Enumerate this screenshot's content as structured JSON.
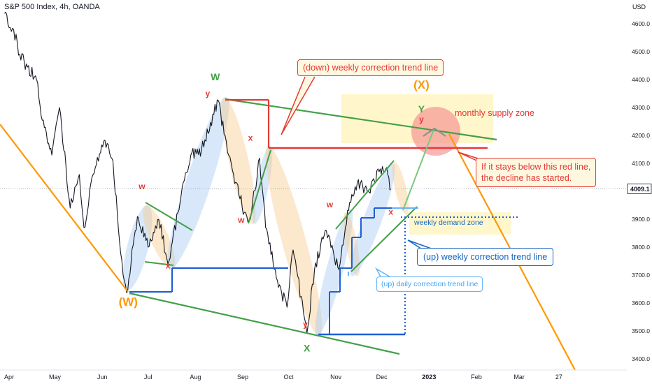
{
  "header": {
    "title": "S&P 500 Index, 4h, OANDA"
  },
  "chart_data": {
    "type": "line",
    "currency": "USD",
    "y_ticks": [
      4600,
      4500,
      4400,
      4300,
      4200,
      4100,
      4000,
      3900,
      3800,
      3700,
      3600,
      3500,
      3400
    ],
    "y_tick_labels": [
      "4600.0",
      "4500.0",
      "4400.0",
      "4300.0",
      "4200.0",
      "4100.0",
      "4000.0",
      "3900.0",
      "3800.0",
      "3700.0",
      "3600.0",
      "3500.0",
      "3400.0"
    ],
    "ylim": [
      3370,
      4680
    ],
    "x_ticks": [
      "2022-04-01",
      "2022-05-01",
      "2022-06-01",
      "2022-07-01",
      "2022-08-01",
      "2022-09-01",
      "2022-10-01",
      "2022-11-01",
      "2022-12-01",
      "2023-01-01",
      "2023-02-01",
      "2023-03-01",
      "2023-03-27"
    ],
    "x_tick_labels": [
      "Apr",
      "May",
      "Jun",
      "Jul",
      "Aug",
      "Sep",
      "Oct",
      "Nov",
      "Dec",
      "2023",
      "Feb",
      "Mar",
      "27"
    ],
    "last_price": {
      "value": 4009.1,
      "label": "4009.1"
    },
    "price_path": [
      [
        "2022-03-29",
        4637
      ],
      [
        "2022-04-04",
        4580
      ],
      [
        "2022-04-08",
        4490
      ],
      [
        "2022-04-13",
        4445
      ],
      [
        "2022-04-19",
        4400
      ],
      [
        "2022-04-22",
        4270
      ],
      [
        "2022-04-29",
        4130
      ],
      [
        "2022-05-04",
        4300
      ],
      [
        "2022-05-11",
        3940
      ],
      [
        "2022-05-17",
        4060
      ],
      [
        "2022-05-20",
        3870
      ],
      [
        "2022-05-26",
        4060
      ],
      [
        "2022-06-02",
        4180
      ],
      [
        "2022-06-08",
        4110
      ],
      [
        "2022-06-13",
        3780
      ],
      [
        "2022-06-17",
        3636
      ],
      [
        "2022-06-24",
        3910
      ],
      [
        "2022-07-01",
        3800
      ],
      [
        "2022-07-08",
        3899
      ],
      [
        "2022-07-14",
        3740
      ],
      [
        "2022-07-22",
        3961
      ],
      [
        "2022-07-29",
        4130
      ],
      [
        "2022-08-05",
        4150
      ],
      [
        "2022-08-16",
        4325
      ],
      [
        "2022-08-22",
        4140
      ],
      [
        "2022-08-26",
        4060
      ],
      [
        "2022-09-02",
        3925
      ],
      [
        "2022-09-06",
        3900
      ],
      [
        "2022-09-12",
        4119
      ],
      [
        "2022-09-16",
        3870
      ],
      [
        "2022-09-23",
        3690
      ],
      [
        "2022-09-30",
        3585
      ],
      [
        "2022-10-04",
        3790
      ],
      [
        "2022-10-13",
        3491
      ],
      [
        "2022-10-18",
        3720
      ],
      [
        "2022-10-25",
        3860
      ],
      [
        "2022-11-03",
        3720
      ],
      [
        "2022-11-10",
        3960
      ],
      [
        "2022-11-15",
        4030
      ],
      [
        "2022-11-22",
        4000
      ],
      [
        "2022-11-30",
        4080
      ],
      [
        "2022-12-05",
        4060
      ],
      [
        "2022-12-07",
        4009.1
      ]
    ],
    "series": [],
    "annotations": {
      "wave_labels": [
        {
          "text": "(W)",
          "color": "#ff9800",
          "date": "2022-06-18",
          "price": 3590,
          "size": 17
        },
        {
          "text": "(X)",
          "color": "#ff9800",
          "date": "2022-12-27",
          "price": 4368,
          "size": 17
        },
        {
          "text": "W",
          "color": "#43a047",
          "date": "2022-08-14",
          "price": 4398,
          "size": 14
        },
        {
          "text": "X",
          "color": "#43a047",
          "date": "2022-10-13",
          "price": 3426,
          "size": 14
        },
        {
          "text": "Y",
          "color": "#43a047",
          "date": "2022-12-27",
          "price": 4282,
          "size": 14
        },
        {
          "text": "w",
          "color": "#e53935",
          "date": "2022-06-27",
          "price": 4008,
          "size": 12
        },
        {
          "text": "x",
          "color": "#e53935",
          "date": "2022-07-14",
          "price": 3724,
          "size": 12
        },
        {
          "text": "y",
          "color": "#e53935",
          "date": "2022-08-09",
          "price": 4340,
          "size": 12
        },
        {
          "text": "x",
          "color": "#e53935",
          "date": "2022-09-06",
          "price": 4181,
          "size": 12
        },
        {
          "text": "w",
          "color": "#e53935",
          "date": "2022-08-31",
          "price": 3887,
          "size": 12
        },
        {
          "text": "y",
          "color": "#e53935",
          "date": "2022-10-12",
          "price": 3514,
          "size": 12
        },
        {
          "text": "w",
          "color": "#e53935",
          "date": "2022-10-28",
          "price": 3942,
          "size": 12
        },
        {
          "text": "x",
          "color": "#e53935",
          "date": "2022-12-07",
          "price": 3916,
          "size": 12
        },
        {
          "text": "y",
          "color": "#e53935",
          "date": "2022-12-27",
          "price": 4248,
          "size": 12
        }
      ],
      "notes": {
        "down_trend": "(down) weekly correction trend line",
        "red_line": "If it stays below this red line,\nthe decline has started.",
        "monthly_supply": "monthly supply zone",
        "weekly_demand": "weekly demand zone",
        "up_weekly": "(up) weekly correction trend line",
        "up_daily": "(up) daily correction trend line"
      },
      "colors": {
        "green": "#43a047",
        "red": "#e53935",
        "orange": "#ff9800",
        "blue": "#1e5fd6",
        "light_blue": "#64b5f6",
        "price_line": "#131722",
        "supply_zone": "#fff6c2",
        "demand_zone": "#fff6c2"
      }
    }
  }
}
